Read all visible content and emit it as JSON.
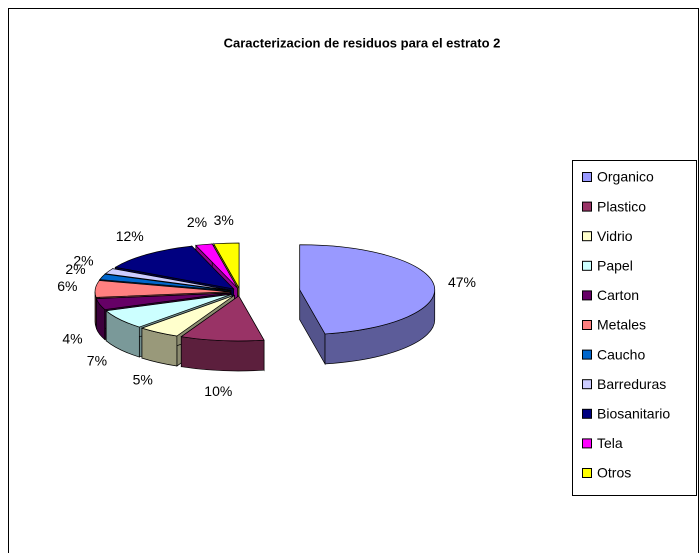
{
  "chart_data": {
    "type": "pie3d",
    "title": "Caracterizacion de residuos para el estrato 2",
    "categories": [
      "Organico",
      "Plastico",
      "Vidrio",
      "Papel",
      "Carton",
      "Metales",
      "Caucho",
      "Barreduras",
      "Biosanitario",
      "Tela",
      "Otros"
    ],
    "values": [
      47,
      10,
      5,
      7,
      4,
      6,
      2,
      2,
      12,
      2,
      3
    ],
    "value_labels": [
      "47%",
      "10%",
      "5%",
      "7%",
      "4%",
      "6%",
      "2%",
      "2%",
      "12%",
      "2%",
      "3%"
    ],
    "colors": [
      "#9999ff",
      "#993366",
      "#ffffcc",
      "#ccffff",
      "#660066",
      "#ff8080",
      "#0066cc",
      "#ccccff",
      "#000080",
      "#ff00ff",
      "#ffff00"
    ],
    "legend": "right"
  }
}
